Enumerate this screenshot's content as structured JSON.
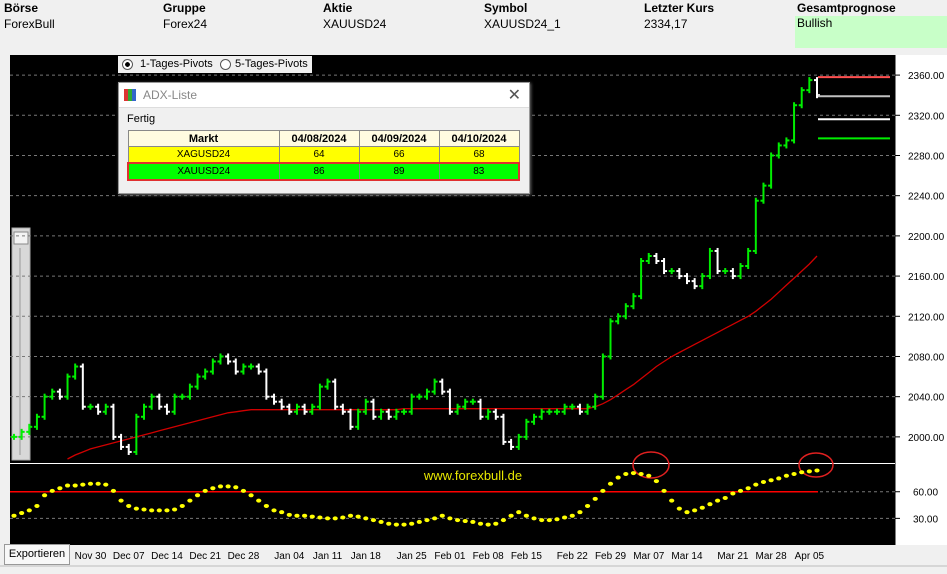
{
  "header": {
    "columns": [
      {
        "label": "Börse",
        "value": "ForexBull"
      },
      {
        "label": "Gruppe",
        "value": "Forex24"
      },
      {
        "label": "Aktie",
        "value": "XAUUSD24"
      },
      {
        "label": "Symbol",
        "value": "XAUUSD24_1"
      },
      {
        "label": "Letzter Kurs",
        "value": "2334,17"
      },
      {
        "label": "Gesamtprognose",
        "value": "Bullish",
        "color": "#c8ffc8"
      }
    ]
  },
  "pivot_options": {
    "labels": [
      "1-Tages-Pivots",
      "5-Tages-Pivots"
    ],
    "selected": 0
  },
  "dialog": {
    "title": "ADX-Liste",
    "status": "Fertig",
    "table": {
      "header": [
        "Markt",
        "04/08/2024",
        "04/09/2024",
        "04/10/2024"
      ],
      "rows": [
        [
          "XAGUSD24",
          64,
          66,
          68
        ],
        [
          "XAUUSD24",
          86,
          89,
          83
        ]
      ],
      "row_colors": [
        "#ffff00",
        "#00ff00"
      ]
    }
  },
  "watermark": "www.forexbull.de",
  "export_button": "Exportieren",
  "chart_data": [
    {
      "type": "price-bars",
      "ylim": [
        1975,
        2378
      ],
      "grid": true,
      "up_color": "#00ee00",
      "down_color": "#ffffff",
      "yticks": [
        {
          "value": 2000,
          "label": "2000.00"
        },
        {
          "value": 2040,
          "label": "2040.00"
        },
        {
          "value": 2080,
          "label": "2080.00"
        },
        {
          "value": 2120,
          "label": "2120.00"
        },
        {
          "value": 2160,
          "label": "2160.00"
        },
        {
          "value": 2200,
          "label": "2200.00"
        },
        {
          "value": 2240,
          "label": "2240.00"
        },
        {
          "value": 2280,
          "label": "2280.00"
        },
        {
          "value": 2320,
          "label": "2320.00"
        },
        {
          "value": 2360,
          "label": "2360.00"
        }
      ],
      "categories": [
        null,
        null,
        null,
        null,
        null,
        null,
        null,
        null,
        null,
        null,
        "Nov 30",
        null,
        null,
        null,
        null,
        "Dec 07",
        null,
        null,
        null,
        null,
        "Dec 14",
        null,
        null,
        null,
        null,
        "Dec 21",
        null,
        null,
        null,
        null,
        "Dec 28",
        null,
        null,
        null,
        null,
        null,
        "Jan 04",
        null,
        null,
        null,
        null,
        "Jan 11",
        null,
        null,
        null,
        null,
        "Jan 18",
        null,
        null,
        null,
        null,
        null,
        "Jan 25",
        null,
        null,
        null,
        null,
        "Feb 01",
        null,
        null,
        null,
        null,
        "Feb 08",
        null,
        null,
        null,
        null,
        "Feb 15",
        null,
        null,
        null,
        null,
        null,
        "Feb 22",
        null,
        null,
        null,
        null,
        "Feb 29",
        null,
        null,
        null,
        null,
        "Mar 07",
        null,
        null,
        null,
        null,
        "Mar 14",
        null,
        null,
        null,
        null,
        null,
        "Mar 21",
        null,
        null,
        null,
        null,
        "Mar 28",
        null,
        null,
        null,
        null,
        "Apr 05",
        null
      ],
      "values": [
        2000,
        2005,
        2010,
        2020,
        2040,
        2045,
        2040,
        2060,
        2070,
        2030,
        2030,
        2025,
        2030,
        2000,
        1990,
        1985,
        2020,
        2030,
        2040,
        2030,
        2025,
        2040,
        2040,
        2050,
        2060,
        2065,
        2075,
        2080,
        2075,
        2065,
        2070,
        2070,
        2065,
        2040,
        2035,
        2030,
        2025,
        2030,
        2025,
        2030,
        2050,
        2055,
        2030,
        2025,
        2010,
        2025,
        2035,
        2020,
        2025,
        2020,
        2025,
        2025,
        2040,
        2040,
        2045,
        2055,
        2045,
        2025,
        2030,
        2035,
        2035,
        2020,
        2025,
        2020,
        1995,
        1990,
        2000,
        2015,
        2020,
        2025,
        2025,
        2025,
        2030,
        2030,
        2025,
        2030,
        2040,
        2080,
        2115,
        2120,
        2130,
        2140,
        2175,
        2180,
        2175,
        2165,
        2165,
        2160,
        2155,
        2150,
        2160,
        2185,
        2165,
        2165,
        2160,
        2170,
        2185,
        2235,
        2250,
        2280,
        2290,
        2295,
        2330,
        2345,
        2355,
        2340
      ],
      "moving_average": {
        "color": "#d00000",
        "values": [
          null,
          null,
          null,
          null,
          null,
          null,
          null,
          1978,
          1982,
          1985,
          1988,
          1990,
          1992,
          1994,
          1996,
          1998,
          2000,
          2002,
          2004,
          2006,
          2008,
          2010,
          2012,
          2014,
          2016,
          2018,
          2020,
          2022,
          2024,
          2025,
          2026,
          2027,
          2027,
          2027,
          2027,
          2027,
          2027,
          2027,
          2027,
          2027,
          2027,
          2027,
          2027,
          2027,
          2027,
          2027,
          2027,
          2027,
          2027,
          2027,
          2027,
          2028,
          2028,
          2028,
          2028,
          2028,
          2028,
          2028,
          2028,
          2028,
          2028,
          2028,
          2028,
          2028,
          2028,
          2028,
          2028,
          2028,
          2028,
          2028,
          2028,
          2028,
          2028,
          2028,
          2028,
          2028,
          2030,
          2033,
          2037,
          2042,
          2047,
          2052,
          2058,
          2064,
          2070,
          2075,
          2080,
          2084,
          2088,
          2092,
          2096,
          2100,
          2104,
          2108,
          2112,
          2116,
          2120,
          2125,
          2131,
          2137,
          2144,
          2151,
          2158,
          2165,
          2172,
          2180
        ]
      },
      "pivots": [
        {
          "value": 2358,
          "color": "#ff5050"
        },
        {
          "value": 2339,
          "color": "#c0c0c0"
        },
        {
          "value": 2316,
          "color": "#ffffff"
        },
        {
          "value": 2297,
          "color": "#00ee00"
        }
      ]
    },
    {
      "type": "dots",
      "ylim": [
        0,
        89
      ],
      "grid": true,
      "color": "#ffff00",
      "yticks": [
        {
          "value": 30,
          "label": "30.00"
        },
        {
          "value": 60,
          "label": "60.00"
        }
      ],
      "threshold": {
        "value": 60,
        "color": "#ff0000"
      },
      "values": [
        33,
        36,
        39,
        44,
        56,
        61,
        64,
        67,
        67,
        68,
        69,
        69,
        68,
        61,
        50,
        44,
        41,
        40,
        39,
        39,
        39,
        40,
        44,
        50,
        56,
        61,
        64,
        66,
        66,
        65,
        61,
        56,
        50,
        44,
        39,
        37,
        34,
        33,
        33,
        32,
        31,
        30,
        30,
        31,
        33,
        32,
        30,
        28,
        26,
        24,
        23,
        23,
        24,
        26,
        28,
        30,
        33,
        30,
        28,
        27,
        26,
        24,
        23,
        24,
        28,
        33,
        37,
        33,
        30,
        28,
        28,
        29,
        31,
        33,
        37,
        44,
        52,
        61,
        69,
        76,
        80,
        81,
        80,
        78,
        72,
        61,
        50,
        41,
        37,
        39,
        42,
        46,
        50,
        53,
        58,
        61,
        64,
        68,
        71,
        73,
        75,
        78,
        80,
        82,
        83,
        84
      ]
    }
  ]
}
